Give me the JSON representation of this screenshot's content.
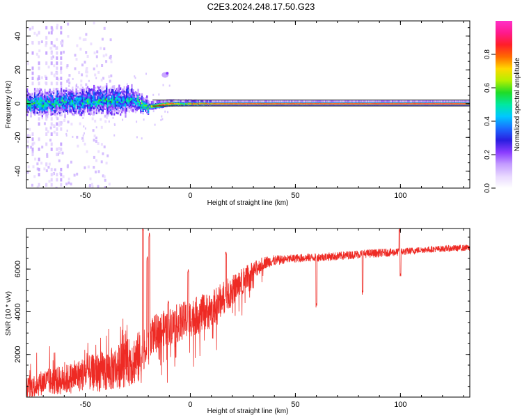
{
  "figure": {
    "title": "C2E3.2024.248.17.50.G23"
  },
  "colors": {
    "snr_line": "#ee2a24",
    "band_outline": "#111111",
    "colormap": [
      "#ffffff",
      "#e8d8ff",
      "#c49cff",
      "#8a3cff",
      "#2a1ee0",
      "#1a6cff",
      "#00c8ff",
      "#00e8a0",
      "#1edc28",
      "#b4f000",
      "#ffd800",
      "#ff6a00",
      "#ff1e28",
      "#ff1a8c",
      "#ff30c8"
    ]
  },
  "chart_data": [
    {
      "type": "heatmap",
      "name": "spectrogram",
      "xlabel": "Height of straight line (km)",
      "ylabel": "Frequency (Hz)",
      "xlim": [
        -78,
        133
      ],
      "ylim": [
        -50,
        49
      ],
      "xticks": [
        "-50",
        "0",
        "50",
        "100"
      ],
      "yticks": [
        "-40",
        "-20",
        "0",
        "20",
        "40"
      ],
      "colorbar": {
        "label": "Normalized spectral amplitude",
        "range": [
          0.0,
          1.0
        ],
        "ticks": [
          "0.0",
          "0.2",
          "0.4",
          "0.6",
          "0.8"
        ]
      },
      "signal_band_center_hz": [
        [
          -78,
          0.5
        ],
        [
          -70,
          0.5
        ],
        [
          -60,
          1
        ],
        [
          -50,
          1.5
        ],
        [
          -40,
          1.5
        ],
        [
          -30,
          2
        ],
        [
          -25,
          1
        ],
        [
          -22,
          -1.5
        ],
        [
          -18,
          -1
        ],
        [
          -10,
          0.5
        ],
        [
          0,
          0.5
        ],
        [
          20,
          0.5
        ],
        [
          60,
          0.5
        ],
        [
          100,
          0.5
        ],
        [
          133,
          0.5
        ]
      ],
      "signal_band_halfwidth_hz": [
        [
          -78,
          5
        ],
        [
          -50,
          6
        ],
        [
          -30,
          6
        ],
        [
          -25,
          4
        ],
        [
          -20,
          2
        ],
        [
          -10,
          1.5
        ],
        [
          10,
          1
        ],
        [
          133,
          1
        ]
      ],
      "mean_amplitude": [
        [
          -78,
          0.45
        ],
        [
          -60,
          0.4
        ],
        [
          -40,
          0.4
        ],
        [
          -28,
          0.35
        ],
        [
          -20,
          0.55
        ],
        [
          -15,
          0.8
        ],
        [
          -8,
          0.75
        ],
        [
          -3,
          0.55
        ],
        [
          0,
          0.75
        ],
        [
          10,
          0.85
        ],
        [
          20,
          0.9
        ],
        [
          133,
          0.95
        ]
      ]
    },
    {
      "type": "line",
      "name": "snr",
      "xlabel": "Height of straight line (km)",
      "ylabel": "SNR (10 * v/v)",
      "xlim": [
        -78,
        133
      ],
      "ylim": [
        0,
        7900
      ],
      "xticks": [
        "-50",
        "0",
        "50",
        "100"
      ],
      "yticks": [
        "2000",
        "4000",
        "6000"
      ],
      "series": [
        {
          "color": "#ee2a24",
          "x": [
            -78,
            -70,
            -60,
            -50,
            -40,
            -30,
            -23,
            -21,
            -20,
            -18,
            -10,
            -5,
            0,
            5,
            10,
            15,
            20,
            25,
            30,
            35,
            40,
            45,
            50,
            60,
            70,
            80,
            90,
            100,
            110,
            120,
            133
          ],
          "y": [
            400,
            700,
            800,
            1100,
            1200,
            1600,
            1900,
            2000,
            2500,
            3000,
            3300,
            3500,
            3700,
            3900,
            4100,
            4600,
            5000,
            5500,
            5900,
            6300,
            6400,
            6450,
            6500,
            6550,
            6600,
            6700,
            6750,
            6800,
            6900,
            6950,
            7000
          ],
          "spread": [
            500,
            600,
            700,
            800,
            1000,
            1100,
            1300,
            300,
            900,
            800,
            900,
            900,
            900,
            900,
            850,
            800,
            700,
            600,
            450,
            300,
            250,
            200,
            200,
            200,
            200,
            200,
            200,
            180,
            150,
            150,
            150
          ],
          "spikes": [
            {
              "x": -22.5,
              "y": 7900
            },
            {
              "x": -20.5,
              "y": 6600
            },
            {
              "x": -19.5,
              "y": 7700
            },
            {
              "x": -10.5,
              "y": 4500
            },
            {
              "x": -1,
              "y": 6000
            },
            {
              "x": 17,
              "y": 6800
            },
            {
              "x": 25,
              "y": 5000
            },
            {
              "x": 60,
              "y": 4400
            },
            {
              "x": 82,
              "y": 5000
            },
            {
              "x": 99.5,
              "y": 7900
            },
            {
              "x": 100,
              "y": 5800
            }
          ]
        }
      ]
    }
  ]
}
